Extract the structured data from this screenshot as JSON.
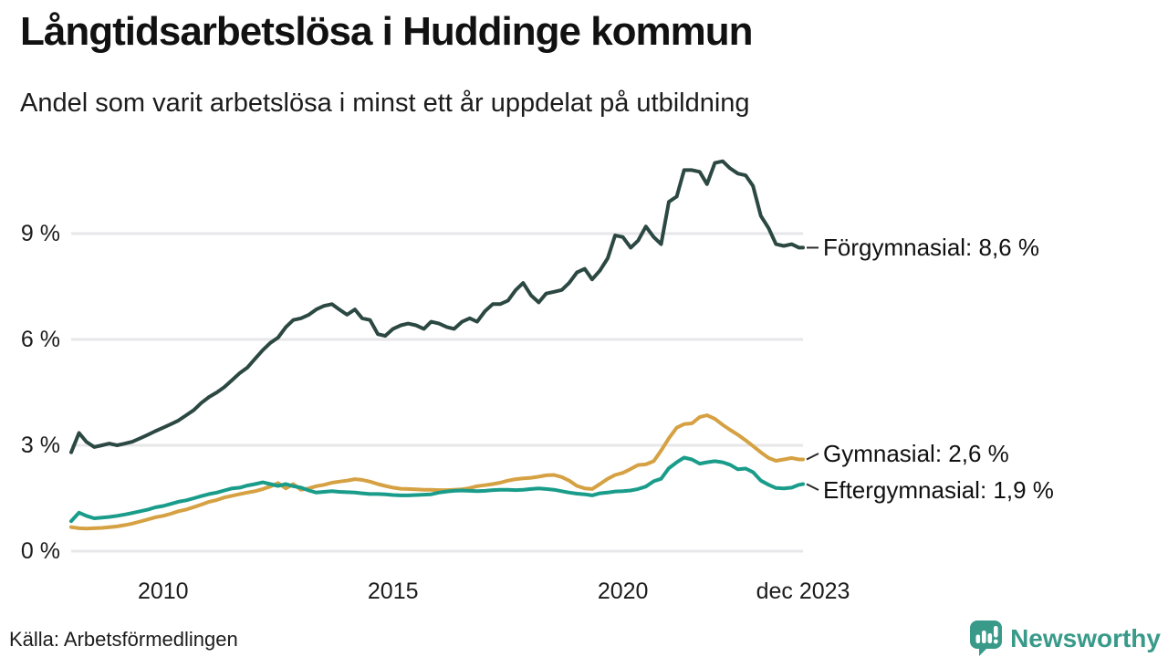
{
  "header": {
    "title": "Långtidsarbetslösa i Huddinge kommun",
    "subtitle": "Andel som varit arbetslösa i minst ett år uppdelat på utbildning"
  },
  "footer": {
    "source": "Källa: Arbetsförmedlingen",
    "brand_name": "Newsworthy"
  },
  "icons": {
    "brand": "bar-chart-speech-bubble-icon"
  },
  "colors": {
    "forgymnasial": "#2c4842",
    "gymnasial": "#d5a142",
    "eftergymnasial": "#1a9c8a",
    "gridline": "#e7e7ea",
    "connector": "#2a2a2a",
    "text": "#1a1a1a",
    "brand": "#399a8a",
    "background": "#ffffff"
  },
  "chart_data": {
    "type": "line",
    "title": "Långtidsarbetslösa i Huddinge kommun",
    "subtitle": "Andel som varit arbetslösa i minst ett år uppdelat på utbildning",
    "source": "Källa: Arbetsförmedlingen",
    "unit": "%",
    "grid": "horizontal-only",
    "legend_position": "right-end-labels",
    "xlim": [
      2008,
      2023.917
    ],
    "ylim": [
      0,
      11.6
    ],
    "gridlines_pct": [
      0,
      3,
      6,
      9
    ],
    "y_ticks": [
      {
        "value": 9,
        "label": "9 %"
      },
      {
        "value": 6,
        "label": "6 %"
      },
      {
        "value": 3,
        "label": "3 %"
      },
      {
        "value": 0,
        "label": "0 %"
      }
    ],
    "x_ticks": [
      {
        "x": 2010,
        "label": "2010"
      },
      {
        "x": 2015,
        "label": "2015"
      },
      {
        "x": 2020,
        "label": "2020"
      },
      {
        "x": 2023.917,
        "label": "dec 2023"
      }
    ],
    "x": [
      2008,
      2008.17,
      2008.33,
      2008.5,
      2008.67,
      2008.83,
      2009,
      2009.17,
      2009.33,
      2009.5,
      2009.67,
      2009.83,
      2010,
      2010.17,
      2010.33,
      2010.5,
      2010.67,
      2010.83,
      2011,
      2011.17,
      2011.33,
      2011.5,
      2011.67,
      2011.83,
      2012,
      2012.17,
      2012.33,
      2012.5,
      2012.67,
      2012.83,
      2013,
      2013.17,
      2013.33,
      2013.5,
      2013.67,
      2013.83,
      2014,
      2014.17,
      2014.33,
      2014.5,
      2014.67,
      2014.83,
      2015,
      2015.17,
      2015.33,
      2015.5,
      2015.67,
      2015.83,
      2016,
      2016.17,
      2016.33,
      2016.5,
      2016.67,
      2016.83,
      2017,
      2017.17,
      2017.33,
      2017.5,
      2017.67,
      2017.83,
      2018,
      2018.17,
      2018.33,
      2018.5,
      2018.67,
      2018.83,
      2019,
      2019.17,
      2019.33,
      2019.5,
      2019.67,
      2019.83,
      2020,
      2020.17,
      2020.33,
      2020.5,
      2020.67,
      2020.83,
      2021,
      2021.17,
      2021.33,
      2021.5,
      2021.67,
      2021.83,
      2022,
      2022.17,
      2022.33,
      2022.5,
      2022.67,
      2022.83,
      2023,
      2023.17,
      2023.33,
      2023.5,
      2023.67,
      2023.83,
      2023.917
    ],
    "series": [
      {
        "name": "Förgymnasial",
        "end_label": "Förgymnasial: 8,6 %",
        "end_value": 8.6,
        "color_key": "forgymnasial",
        "values": [
          2.8,
          3.35,
          3.1,
          2.95,
          3.0,
          3.05,
          3.0,
          3.05,
          3.1,
          3.2,
          3.3,
          3.4,
          3.5,
          3.6,
          3.7,
          3.85,
          4.0,
          4.2,
          4.37,
          4.5,
          4.65,
          4.85,
          5.05,
          5.2,
          5.45,
          5.7,
          5.9,
          6.05,
          6.35,
          6.55,
          6.6,
          6.7,
          6.85,
          6.95,
          7.0,
          6.85,
          6.7,
          6.85,
          6.6,
          6.55,
          6.15,
          6.1,
          6.3,
          6.4,
          6.45,
          6.4,
          6.3,
          6.5,
          6.45,
          6.35,
          6.3,
          6.5,
          6.6,
          6.5,
          6.8,
          7.0,
          7.0,
          7.1,
          7.4,
          7.6,
          7.25,
          7.05,
          7.3,
          7.35,
          7.4,
          7.6,
          7.9,
          8.0,
          7.7,
          7.95,
          8.3,
          8.95,
          8.9,
          8.6,
          8.8,
          9.2,
          8.9,
          8.7,
          9.9,
          10.05,
          10.8,
          10.8,
          10.75,
          10.4,
          11.0,
          11.05,
          10.85,
          10.7,
          10.65,
          10.35,
          9.5,
          9.15,
          8.7,
          8.65,
          8.7,
          8.6,
          8.6
        ]
      },
      {
        "name": "Gymnasial",
        "end_label": "Gymnasial: 2,6 %",
        "end_value": 2.6,
        "color_key": "gymnasial",
        "values": [
          0.68,
          0.65,
          0.64,
          0.65,
          0.66,
          0.68,
          0.7,
          0.74,
          0.78,
          0.84,
          0.9,
          0.96,
          1.0,
          1.06,
          1.13,
          1.18,
          1.25,
          1.32,
          1.4,
          1.45,
          1.52,
          1.57,
          1.62,
          1.66,
          1.7,
          1.76,
          1.83,
          1.93,
          1.78,
          1.9,
          1.74,
          1.78,
          1.84,
          1.88,
          1.94,
          1.97,
          2.0,
          2.04,
          2.02,
          1.97,
          1.9,
          1.85,
          1.8,
          1.77,
          1.76,
          1.75,
          1.74,
          1.74,
          1.73,
          1.73,
          1.74,
          1.75,
          1.79,
          1.84,
          1.87,
          1.9,
          1.94,
          2.0,
          2.04,
          2.06,
          2.08,
          2.11,
          2.15,
          2.16,
          2.1,
          2.0,
          1.85,
          1.78,
          1.76,
          1.9,
          2.05,
          2.16,
          2.22,
          2.33,
          2.44,
          2.46,
          2.55,
          2.85,
          3.2,
          3.5,
          3.6,
          3.62,
          3.8,
          3.85,
          3.75,
          3.58,
          3.44,
          3.3,
          3.14,
          2.98,
          2.8,
          2.64,
          2.56,
          2.6,
          2.64,
          2.6,
          2.6
        ]
      },
      {
        "name": "Eftergymnasial",
        "end_label": "Eftergymnasial: 1,9 %",
        "end_value": 1.9,
        "color_key": "eftergymnasial",
        "values": [
          0.85,
          1.09,
          1.0,
          0.93,
          0.95,
          0.97,
          1.0,
          1.04,
          1.08,
          1.13,
          1.18,
          1.24,
          1.28,
          1.34,
          1.4,
          1.44,
          1.5,
          1.56,
          1.62,
          1.66,
          1.72,
          1.78,
          1.8,
          1.86,
          1.9,
          1.95,
          1.9,
          1.85,
          1.9,
          1.84,
          1.8,
          1.72,
          1.66,
          1.68,
          1.7,
          1.68,
          1.67,
          1.66,
          1.64,
          1.62,
          1.62,
          1.61,
          1.59,
          1.58,
          1.58,
          1.59,
          1.6,
          1.61,
          1.66,
          1.69,
          1.71,
          1.72,
          1.71,
          1.7,
          1.71,
          1.73,
          1.74,
          1.74,
          1.73,
          1.74,
          1.76,
          1.78,
          1.76,
          1.74,
          1.7,
          1.66,
          1.63,
          1.61,
          1.58,
          1.64,
          1.66,
          1.69,
          1.7,
          1.72,
          1.76,
          1.83,
          1.98,
          2.05,
          2.35,
          2.52,
          2.65,
          2.6,
          2.48,
          2.52,
          2.55,
          2.52,
          2.45,
          2.32,
          2.34,
          2.24,
          2.0,
          1.88,
          1.79,
          1.78,
          1.8,
          1.88,
          1.9
        ]
      }
    ]
  }
}
